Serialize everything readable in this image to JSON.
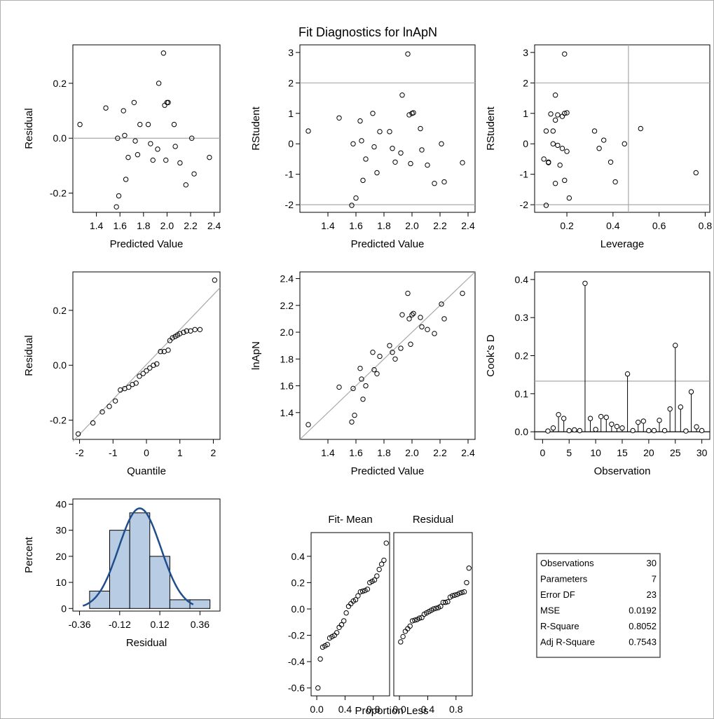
{
  "title": "Fit Diagnostics for lnApN",
  "chart_data": [
    {
      "id": "residual_vs_predicted",
      "type": "scatter",
      "xlabel": "Predicted Value",
      "ylabel": "Residual",
      "xlim": [
        1.2,
        2.45
      ],
      "ylim": [
        -0.27,
        0.34
      ],
      "xticks": [
        1.4,
        1.6,
        1.8,
        2.0,
        2.2,
        2.4
      ],
      "xtick_labels": [
        "1.4",
        "1.6",
        "1.8",
        "2.0",
        "2.2",
        "2.4"
      ],
      "yticks": [
        -0.2,
        0.0,
        0.2
      ],
      "ytick_labels": [
        "-0.2",
        "0.0",
        "0.2"
      ],
      "hlines": [
        0.0
      ],
      "points": [
        [
          1.26,
          0.05
        ],
        [
          1.48,
          0.11
        ],
        [
          1.57,
          -0.25
        ],
        [
          1.58,
          0.0
        ],
        [
          1.59,
          -0.21
        ],
        [
          1.63,
          0.1
        ],
        [
          1.64,
          0.01
        ],
        [
          1.65,
          -0.15
        ],
        [
          1.67,
          -0.07
        ],
        [
          1.72,
          0.13
        ],
        [
          1.73,
          -0.01
        ],
        [
          1.75,
          -0.06
        ],
        [
          1.77,
          0.05
        ],
        [
          1.84,
          0.05
        ],
        [
          1.86,
          -0.02
        ],
        [
          1.88,
          -0.08
        ],
        [
          1.92,
          -0.04
        ],
        [
          1.93,
          0.2
        ],
        [
          1.97,
          0.31
        ],
        [
          1.98,
          0.12
        ],
        [
          1.99,
          -0.08
        ],
        [
          2.0,
          0.13
        ],
        [
          2.01,
          0.13
        ],
        [
          2.06,
          0.05
        ],
        [
          2.07,
          -0.03
        ],
        [
          2.11,
          -0.09
        ],
        [
          2.16,
          -0.17
        ],
        [
          2.21,
          0.0
        ],
        [
          2.23,
          -0.13
        ],
        [
          2.36,
          -0.07
        ]
      ]
    },
    {
      "id": "rstudent_vs_predicted",
      "type": "scatter",
      "xlabel": "Predicted Value",
      "ylabel": "RStudent",
      "xlim": [
        1.2,
        2.45
      ],
      "ylim": [
        -2.25,
        3.25
      ],
      "xticks": [
        1.4,
        1.6,
        1.8,
        2.0,
        2.2,
        2.4
      ],
      "xtick_labels": [
        "1.4",
        "1.6",
        "1.8",
        "2.0",
        "2.2",
        "2.4"
      ],
      "yticks": [
        -2,
        -1,
        0,
        1,
        2,
        3
      ],
      "ytick_labels": [
        "-2",
        "-1",
        "0",
        "1",
        "2",
        "3"
      ],
      "hlines": [
        -2,
        2
      ],
      "points": [
        [
          1.26,
          0.42
        ],
        [
          1.48,
          0.85
        ],
        [
          1.57,
          -2.02
        ],
        [
          1.58,
          0.0
        ],
        [
          1.6,
          -1.78
        ],
        [
          1.63,
          0.75
        ],
        [
          1.64,
          0.1
        ],
        [
          1.65,
          -1.2
        ],
        [
          1.67,
          -0.5
        ],
        [
          1.72,
          1.0
        ],
        [
          1.73,
          -0.1
        ],
        [
          1.75,
          -0.95
        ],
        [
          1.77,
          0.4
        ],
        [
          1.84,
          0.4
        ],
        [
          1.86,
          -0.15
        ],
        [
          1.88,
          -0.6
        ],
        [
          1.92,
          -0.3
        ],
        [
          1.93,
          1.6
        ],
        [
          1.97,
          2.95
        ],
        [
          1.98,
          0.95
        ],
        [
          1.99,
          -0.65
        ],
        [
          2.0,
          1.0
        ],
        [
          2.01,
          1.02
        ],
        [
          2.06,
          0.5
        ],
        [
          2.07,
          -0.2
        ],
        [
          2.11,
          -0.7
        ],
        [
          2.16,
          -1.3
        ],
        [
          2.21,
          0.0
        ],
        [
          2.23,
          -1.25
        ],
        [
          2.36,
          -0.62
        ]
      ]
    },
    {
      "id": "rstudent_vs_leverage",
      "type": "scatter",
      "xlabel": "Leverage",
      "ylabel": "RStudent",
      "xlim": [
        0.06,
        0.82
      ],
      "ylim": [
        -2.25,
        3.25
      ],
      "xticks": [
        0.2,
        0.4,
        0.6,
        0.8
      ],
      "xtick_labels": [
        "0.2",
        "0.4",
        "0.6",
        "0.8"
      ],
      "yticks": [
        -2,
        -1,
        0,
        1,
        2,
        3
      ],
      "ytick_labels": [
        "-2",
        "-1",
        "0",
        "1",
        "2",
        "3"
      ],
      "hlines": [
        -2,
        2
      ],
      "vlines": [
        0.467
      ],
      "points": [
        [
          0.1,
          -0.5
        ],
        [
          0.11,
          -2.02
        ],
        [
          0.11,
          0.42
        ],
        [
          0.12,
          -0.6
        ],
        [
          0.12,
          -0.62
        ],
        [
          0.13,
          0.98
        ],
        [
          0.14,
          0.42
        ],
        [
          0.14,
          0.0
        ],
        [
          0.15,
          -1.3
        ],
        [
          0.15,
          1.6
        ],
        [
          0.15,
          0.78
        ],
        [
          0.16,
          0.95
        ],
        [
          0.16,
          -0.05
        ],
        [
          0.17,
          -0.7
        ],
        [
          0.18,
          0.9
        ],
        [
          0.18,
          -0.15
        ],
        [
          0.19,
          1.0
        ],
        [
          0.19,
          -1.2
        ],
        [
          0.19,
          2.95
        ],
        [
          0.2,
          -0.25
        ],
        [
          0.2,
          1.02
        ],
        [
          0.21,
          -1.78
        ],
        [
          0.32,
          0.42
        ],
        [
          0.34,
          -0.15
        ],
        [
          0.36,
          0.12
        ],
        [
          0.39,
          -0.6
        ],
        [
          0.41,
          -1.25
        ],
        [
          0.45,
          0.0
        ],
        [
          0.52,
          0.5
        ],
        [
          0.76,
          -0.95
        ]
      ]
    },
    {
      "id": "residual_qq",
      "type": "scatter",
      "xlabel": "Quantile",
      "ylabel": "Residual",
      "xlim": [
        -2.2,
        2.2
      ],
      "ylim": [
        -0.27,
        0.34
      ],
      "xticks": [
        -2,
        -1,
        0,
        1,
        2
      ],
      "xtick_labels": [
        "-2",
        "-1",
        "0",
        "1",
        "2"
      ],
      "yticks": [
        -0.2,
        0.0,
        0.2
      ],
      "ytick_labels": [
        "-0.2",
        "0.0",
        "0.2"
      ],
      "ref_line": [
        [
          -2.2,
          -0.277
        ],
        [
          2.2,
          0.282
        ]
      ],
      "points": [
        [
          -2.04,
          -0.25
        ],
        [
          -1.6,
          -0.21
        ],
        [
          -1.32,
          -0.17
        ],
        [
          -1.11,
          -0.15
        ],
        [
          -0.93,
          -0.13
        ],
        [
          -0.78,
          -0.09
        ],
        [
          -0.65,
          -0.085
        ],
        [
          -0.53,
          -0.08
        ],
        [
          -0.42,
          -0.07
        ],
        [
          -0.31,
          -0.065
        ],
        [
          -0.21,
          -0.04
        ],
        [
          -0.1,
          -0.03
        ],
        [
          0.0,
          -0.02
        ],
        [
          0.1,
          -0.01
        ],
        [
          0.21,
          0.0
        ],
        [
          0.31,
          0.005
        ],
        [
          0.42,
          0.05
        ],
        [
          0.53,
          0.05
        ],
        [
          0.65,
          0.055
        ],
        [
          0.78,
          0.1
        ],
        [
          0.93,
          0.11
        ],
        [
          1.11,
          0.12
        ],
        [
          1.32,
          0.125
        ],
        [
          1.6,
          0.13
        ],
        [
          2.04,
          0.31
        ],
        [
          1.0,
          0.115
        ],
        [
          0.86,
          0.105
        ],
        [
          0.7,
          0.09
        ],
        [
          1.2,
          0.125
        ],
        [
          1.45,
          0.13
        ]
      ]
    },
    {
      "id": "observed_vs_predicted",
      "type": "scatter",
      "xlabel": "Predicted Value",
      "ylabel": "lnApN",
      "xlim": [
        1.2,
        2.45
      ],
      "ylim": [
        1.2,
        2.45
      ],
      "xticks": [
        1.4,
        1.6,
        1.8,
        2.0,
        2.2,
        2.4
      ],
      "xtick_labels": [
        "1.4",
        "1.6",
        "1.8",
        "2.0",
        "2.2",
        "2.4"
      ],
      "yticks": [
        1.4,
        1.6,
        1.8,
        2.0,
        2.2,
        2.4
      ],
      "ytick_labels": [
        "1.4",
        "1.6",
        "1.8",
        "2.0",
        "2.2",
        "2.4"
      ],
      "ref_line": [
        [
          1.2,
          1.2
        ],
        [
          2.45,
          2.45
        ]
      ],
      "points": [
        [
          1.26,
          1.31
        ],
        [
          1.48,
          1.59
        ],
        [
          1.57,
          1.33
        ],
        [
          1.58,
          1.58
        ],
        [
          1.59,
          1.38
        ],
        [
          1.63,
          1.73
        ],
        [
          1.64,
          1.65
        ],
        [
          1.65,
          1.5
        ],
        [
          1.67,
          1.6
        ],
        [
          1.72,
          1.85
        ],
        [
          1.73,
          1.72
        ],
        [
          1.75,
          1.69
        ],
        [
          1.77,
          1.82
        ],
        [
          1.84,
          1.9
        ],
        [
          1.86,
          1.85
        ],
        [
          1.88,
          1.8
        ],
        [
          1.92,
          1.88
        ],
        [
          1.93,
          2.13
        ],
        [
          1.97,
          2.29
        ],
        [
          1.98,
          2.1
        ],
        [
          1.99,
          1.91
        ],
        [
          2.0,
          2.13
        ],
        [
          2.01,
          2.14
        ],
        [
          2.06,
          2.11
        ],
        [
          2.07,
          2.04
        ],
        [
          2.11,
          2.02
        ],
        [
          2.16,
          1.99
        ],
        [
          2.21,
          2.21
        ],
        [
          2.23,
          2.1
        ],
        [
          2.36,
          2.29
        ]
      ]
    },
    {
      "id": "cooks_d",
      "type": "needle",
      "xlabel": "Observation",
      "ylabel": "Cook's D",
      "xlim": [
        -1.5,
        31.5
      ],
      "ylim": [
        -0.02,
        0.42
      ],
      "xticks": [
        0,
        5,
        10,
        15,
        20,
        25,
        30
      ],
      "xtick_labels": [
        "0",
        "5",
        "10",
        "15",
        "20",
        "25",
        "30"
      ],
      "yticks": [
        0.0,
        0.1,
        0.2,
        0.3,
        0.4
      ],
      "ytick_labels": [
        "0.0",
        "0.1",
        "0.2",
        "0.3",
        "0.4"
      ],
      "hlines": [
        0.133
      ],
      "x": [
        1,
        2,
        3,
        4,
        5,
        6,
        7,
        8,
        9,
        10,
        11,
        12,
        13,
        14,
        15,
        16,
        17,
        18,
        19,
        20,
        21,
        22,
        23,
        24,
        25,
        26,
        27,
        28,
        29,
        30
      ],
      "values": [
        0.002,
        0.01,
        0.045,
        0.035,
        0.003,
        0.005,
        0.003,
        0.39,
        0.035,
        0.006,
        0.04,
        0.038,
        0.02,
        0.014,
        0.01,
        0.152,
        0.003,
        0.025,
        0.028,
        0.003,
        0.003,
        0.03,
        0.003,
        0.06,
        0.227,
        0.065,
        0.002,
        0.105,
        0.013,
        0.003
      ]
    },
    {
      "id": "residual_histogram",
      "type": "bar",
      "xlabel": "Residual",
      "ylabel": "Percent",
      "xlim": [
        -0.4,
        0.48
      ],
      "ylim": [
        -1,
        42
      ],
      "xticks": [
        -0.36,
        -0.12,
        0.12,
        0.36
      ],
      "xtick_labels": [
        "-0.36",
        "-0.12",
        "0.12",
        "0.36"
      ],
      "yticks": [
        0,
        10,
        20,
        30,
        40
      ],
      "ytick_labels": [
        "0",
        "10",
        "20",
        "30",
        "40"
      ],
      "bin_edges": [
        -0.3,
        -0.18,
        -0.06,
        0.06,
        0.18,
        0.3,
        0.42
      ],
      "values": [
        6.67,
        30.0,
        36.67,
        20.0,
        3.33,
        3.33
      ],
      "curve": {
        "name": "Normal",
        "mean": 0.0,
        "sd": 0.126,
        "scale": 38.4
      },
      "colors": {
        "bar_fill": "#b8cce4",
        "curve": "#1f4e8c"
      }
    },
    {
      "id": "rf_spread",
      "type": "scatter",
      "panels": [
        "Fit- Mean",
        "Residual"
      ],
      "xlabel": "Proportion Less",
      "xlim": [
        -0.08,
        1.03
      ],
      "ylim": [
        -0.66,
        0.58
      ],
      "xticks": [
        0.0,
        0.4,
        0.8
      ],
      "xtick_labels": [
        "0.0",
        "0.4",
        "0.8"
      ],
      "yticks": [
        -0.6,
        -0.4,
        -0.2,
        0.0,
        0.2,
        0.4
      ],
      "ytick_labels": [
        "-0.6",
        "-0.4",
        "-0.2",
        "0.0",
        "0.2",
        "0.4"
      ],
      "series": [
        {
          "name": "Fit- Mean",
          "points": [
            [
              0.017,
              -0.6
            ],
            [
              0.05,
              -0.38
            ],
            [
              0.083,
              -0.29
            ],
            [
              0.117,
              -0.28
            ],
            [
              0.15,
              -0.27
            ],
            [
              0.183,
              -0.22
            ],
            [
              0.217,
              -0.21
            ],
            [
              0.25,
              -0.2
            ],
            [
              0.283,
              -0.18
            ],
            [
              0.317,
              -0.14
            ],
            [
              0.35,
              -0.12
            ],
            [
              0.383,
              -0.09
            ],
            [
              0.417,
              -0.03
            ],
            [
              0.45,
              0.02
            ],
            [
              0.483,
              0.04
            ],
            [
              0.517,
              0.06
            ],
            [
              0.55,
              0.07
            ],
            [
              0.583,
              0.1
            ],
            [
              0.617,
              0.13
            ],
            [
              0.65,
              0.135
            ],
            [
              0.683,
              0.14
            ],
            [
              0.717,
              0.15
            ],
            [
              0.75,
              0.2
            ],
            [
              0.783,
              0.21
            ],
            [
              0.817,
              0.22
            ],
            [
              0.85,
              0.25
            ],
            [
              0.883,
              0.3
            ],
            [
              0.917,
              0.34
            ],
            [
              0.95,
              0.37
            ],
            [
              0.983,
              0.5
            ]
          ]
        },
        {
          "name": "Residual",
          "points": [
            [
              0.017,
              -0.25
            ],
            [
              0.05,
              -0.21
            ],
            [
              0.083,
              -0.17
            ],
            [
              0.117,
              -0.15
            ],
            [
              0.15,
              -0.13
            ],
            [
              0.183,
              -0.09
            ],
            [
              0.217,
              -0.085
            ],
            [
              0.25,
              -0.08
            ],
            [
              0.283,
              -0.07
            ],
            [
              0.317,
              -0.065
            ],
            [
              0.35,
              -0.04
            ],
            [
              0.383,
              -0.03
            ],
            [
              0.417,
              -0.02
            ],
            [
              0.45,
              -0.01
            ],
            [
              0.483,
              0.0
            ],
            [
              0.517,
              0.005
            ],
            [
              0.55,
              0.01
            ],
            [
              0.583,
              0.02
            ],
            [
              0.617,
              0.05
            ],
            [
              0.65,
              0.05
            ],
            [
              0.683,
              0.055
            ],
            [
              0.717,
              0.09
            ],
            [
              0.75,
              0.1
            ],
            [
              0.783,
              0.105
            ],
            [
              0.817,
              0.11
            ],
            [
              0.85,
              0.12
            ],
            [
              0.883,
              0.125
            ],
            [
              0.917,
              0.13
            ],
            [
              0.95,
              0.2
            ],
            [
              0.983,
              0.31
            ]
          ]
        }
      ]
    }
  ],
  "stats": [
    {
      "label": "Observations",
      "value": "30"
    },
    {
      "label": "Parameters",
      "value": "7"
    },
    {
      "label": "Error DF",
      "value": "23"
    },
    {
      "label": "MSE",
      "value": "0.0192"
    },
    {
      "label": "R-Square",
      "value": "0.8052"
    },
    {
      "label": "Adj R-Square",
      "value": "0.7543"
    }
  ]
}
